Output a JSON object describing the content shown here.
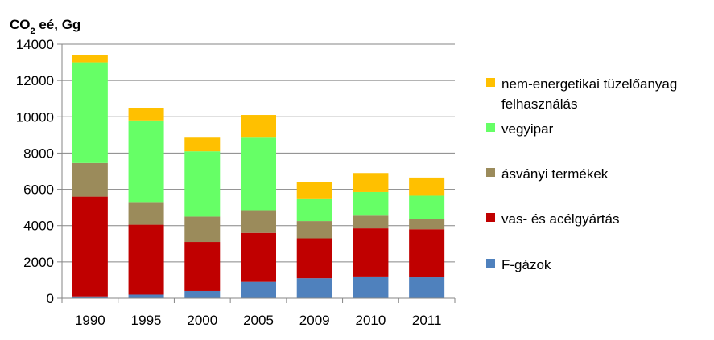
{
  "chart_data": {
    "type": "bar",
    "stacked": true,
    "ylabel": "CO2 eé, Gg",
    "ylabel_main": "CO",
    "ylabel_sub": "2",
    "ylabel_rest": " eé, Gg",
    "ylim": [
      0,
      14000
    ],
    "yticks": [
      0,
      2000,
      4000,
      6000,
      8000,
      10000,
      12000,
      14000
    ],
    "ytick_labels": [
      "0",
      "2000",
      "4000",
      "6000",
      "8000",
      "10000",
      "12000",
      "14000"
    ],
    "grid": true,
    "legend_position": "right",
    "categories": [
      "1990",
      "1995",
      "2000",
      "2005",
      "2009",
      "2010",
      "2011"
    ],
    "series": [
      {
        "name": "F-gázok",
        "color": "#4f81bd",
        "values": [
          100,
          200,
          400,
          900,
          1100,
          1200,
          1150
        ]
      },
      {
        "name": "vas- és acélgyártás",
        "color": "#c00000",
        "values": [
          5500,
          3850,
          2700,
          2700,
          2200,
          2650,
          2650
        ]
      },
      {
        "name": "ásványi termékek",
        "color": "#9b8b5b",
        "values": [
          1850,
          1250,
          1400,
          1250,
          950,
          700,
          550
        ]
      },
      {
        "name": "vegyipar",
        "color": "#66ff66",
        "values": [
          5550,
          4500,
          3600,
          4000,
          1250,
          1300,
          1300
        ]
      },
      {
        "name": "nem-energetikai tüzelőanyag felhasználás",
        "color": "#ffc000",
        "values": [
          400,
          700,
          750,
          1250,
          900,
          1050,
          1000
        ]
      }
    ],
    "legend": [
      {
        "lines": [
          "nem-energetikai tüzelőanyag",
          "felhasználás"
        ],
        "color": "#ffc000"
      },
      {
        "lines": [
          "vegyipar"
        ],
        "color": "#66ff66"
      },
      {
        "lines": [
          "ásványi termékek"
        ],
        "color": "#9b8b5b"
      },
      {
        "lines": [
          "vas- és acélgyártás"
        ],
        "color": "#c00000"
      },
      {
        "lines": [
          "F-gázok"
        ],
        "color": "#4f81bd"
      }
    ]
  }
}
